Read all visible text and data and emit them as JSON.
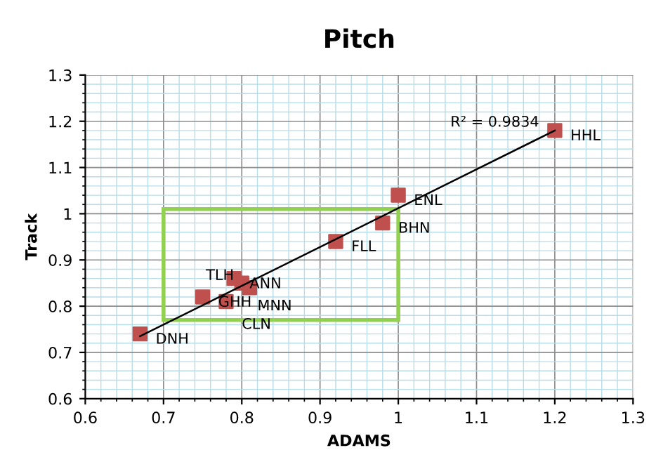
{
  "chart_data": {
    "type": "scatter",
    "title": "Pitch",
    "xlabel": "ADAMS",
    "ylabel": "Track",
    "xlim": [
      0.6,
      1.3
    ],
    "xticks": [
      0.6,
      {
        "value": 0.62,
        "label": null
      },
      {
        "value": 0.64,
        "label": null
      },
      {
        "value": 0.66,
        "label": null
      },
      {
        "value": 0.68,
        "label": null
      },
      0.7,
      {
        "value": 0.72,
        "label": null
      },
      {
        "value": 0.74,
        "label": null
      },
      {
        "value": 0.76,
        "label": null
      },
      {
        "value": 0.78,
        "label": null
      },
      0.8,
      {
        "value": 0.82,
        "label": null
      },
      {
        "value": 0.84,
        "label": null
      },
      {
        "value": 0.86,
        "label": null
      },
      {
        "value": 0.88,
        "label": null
      },
      0.9,
      {
        "value": 0.92,
        "label": null
      },
      {
        "value": 0.94,
        "label": null
      },
      {
        "value": 0.96,
        "label": null
      },
      {
        "value": 0.98,
        "label": null
      },
      1,
      {
        "value": 1.02,
        "label": null
      },
      {
        "value": 1.04,
        "label": null
      },
      {
        "value": 1.06,
        "label": null
      },
      {
        "value": 1.08,
        "label": null
      },
      1.1,
      {
        "value": 1.12,
        "label": null
      },
      {
        "value": 1.14,
        "label": null
      },
      {
        "value": 1.16,
        "label": null
      },
      {
        "value": 1.18,
        "label": null
      },
      1.2,
      {
        "value": 1.22,
        "label": null
      },
      {
        "value": 1.24,
        "label": null
      },
      {
        "value": 1.26,
        "label": null
      },
      {
        "value": 1.28,
        "label": null
      },
      1.3
    ],
    "ylim": [
      0.6,
      1.3
    ],
    "yticks": [
      0.6,
      {
        "value": 0.62,
        "label": null
      },
      {
        "value": 0.64,
        "label": null
      },
      {
        "value": 0.66,
        "label": null
      },
      {
        "value": 0.68,
        "label": null
      },
      0.7,
      {
        "value": 0.72,
        "label": null
      },
      {
        "value": 0.74,
        "label": null
      },
      {
        "value": 0.76,
        "label": null
      },
      {
        "value": 0.78,
        "label": null
      },
      0.8,
      {
        "value": 0.82,
        "label": null
      },
      {
        "value": 0.84,
        "label": null
      },
      {
        "value": 0.86,
        "label": null
      },
      {
        "value": 0.88,
        "label": null
      },
      0.9,
      {
        "value": 0.92,
        "label": null
      },
      {
        "value": 0.94,
        "label": null
      },
      {
        "value": 0.96,
        "label": null
      },
      {
        "value": 0.98,
        "label": null
      },
      1,
      {
        "value": 1.02,
        "label": null
      },
      {
        "value": 1.04,
        "label": null
      },
      {
        "value": 1.06,
        "label": null
      },
      {
        "value": 1.08,
        "label": null
      },
      1.1,
      {
        "value": 1.12,
        "label": null
      },
      {
        "value": 1.14,
        "label": null
      },
      {
        "value": 1.16,
        "label": null
      },
      {
        "value": 1.18,
        "label": null
      },
      1.2,
      {
        "value": 1.22,
        "label": null
      },
      {
        "value": 1.24,
        "label": null
      },
      {
        "value": 1.26,
        "label": null
      },
      {
        "value": 1.28,
        "label": null
      },
      1.3
    ],
    "grid": true,
    "legend": false,
    "annotations": [
      {
        "text": "R² = 0.9834",
        "x": 1.2,
        "y": 1.18
      }
    ],
    "series": [
      {
        "type": "line",
        "color": "#000000",
        "marker": "none",
        "x": [
          0.67,
          1.2
        ],
        "values": [
          0.735,
          1.18
        ]
      },
      {
        "color": "#c0504d",
        "marker": "square",
        "x": [
          0.67,
          0.75,
          0.78,
          0.79,
          0.8,
          0.81,
          0.92,
          0.98,
          1.0,
          1.2
        ],
        "values": [
          0.74,
          0.82,
          0.81,
          0.86,
          0.85,
          0.84,
          0.94,
          0.98,
          1.04,
          1.18
        ],
        "value_labels": [
          "DNH",
          "GHH",
          "CLN",
          "ANN",
          "MNN",
          "TLH",
          "FLL",
          "BHN",
          "ENL",
          "HHL"
        ]
      }
    ]
  }
}
